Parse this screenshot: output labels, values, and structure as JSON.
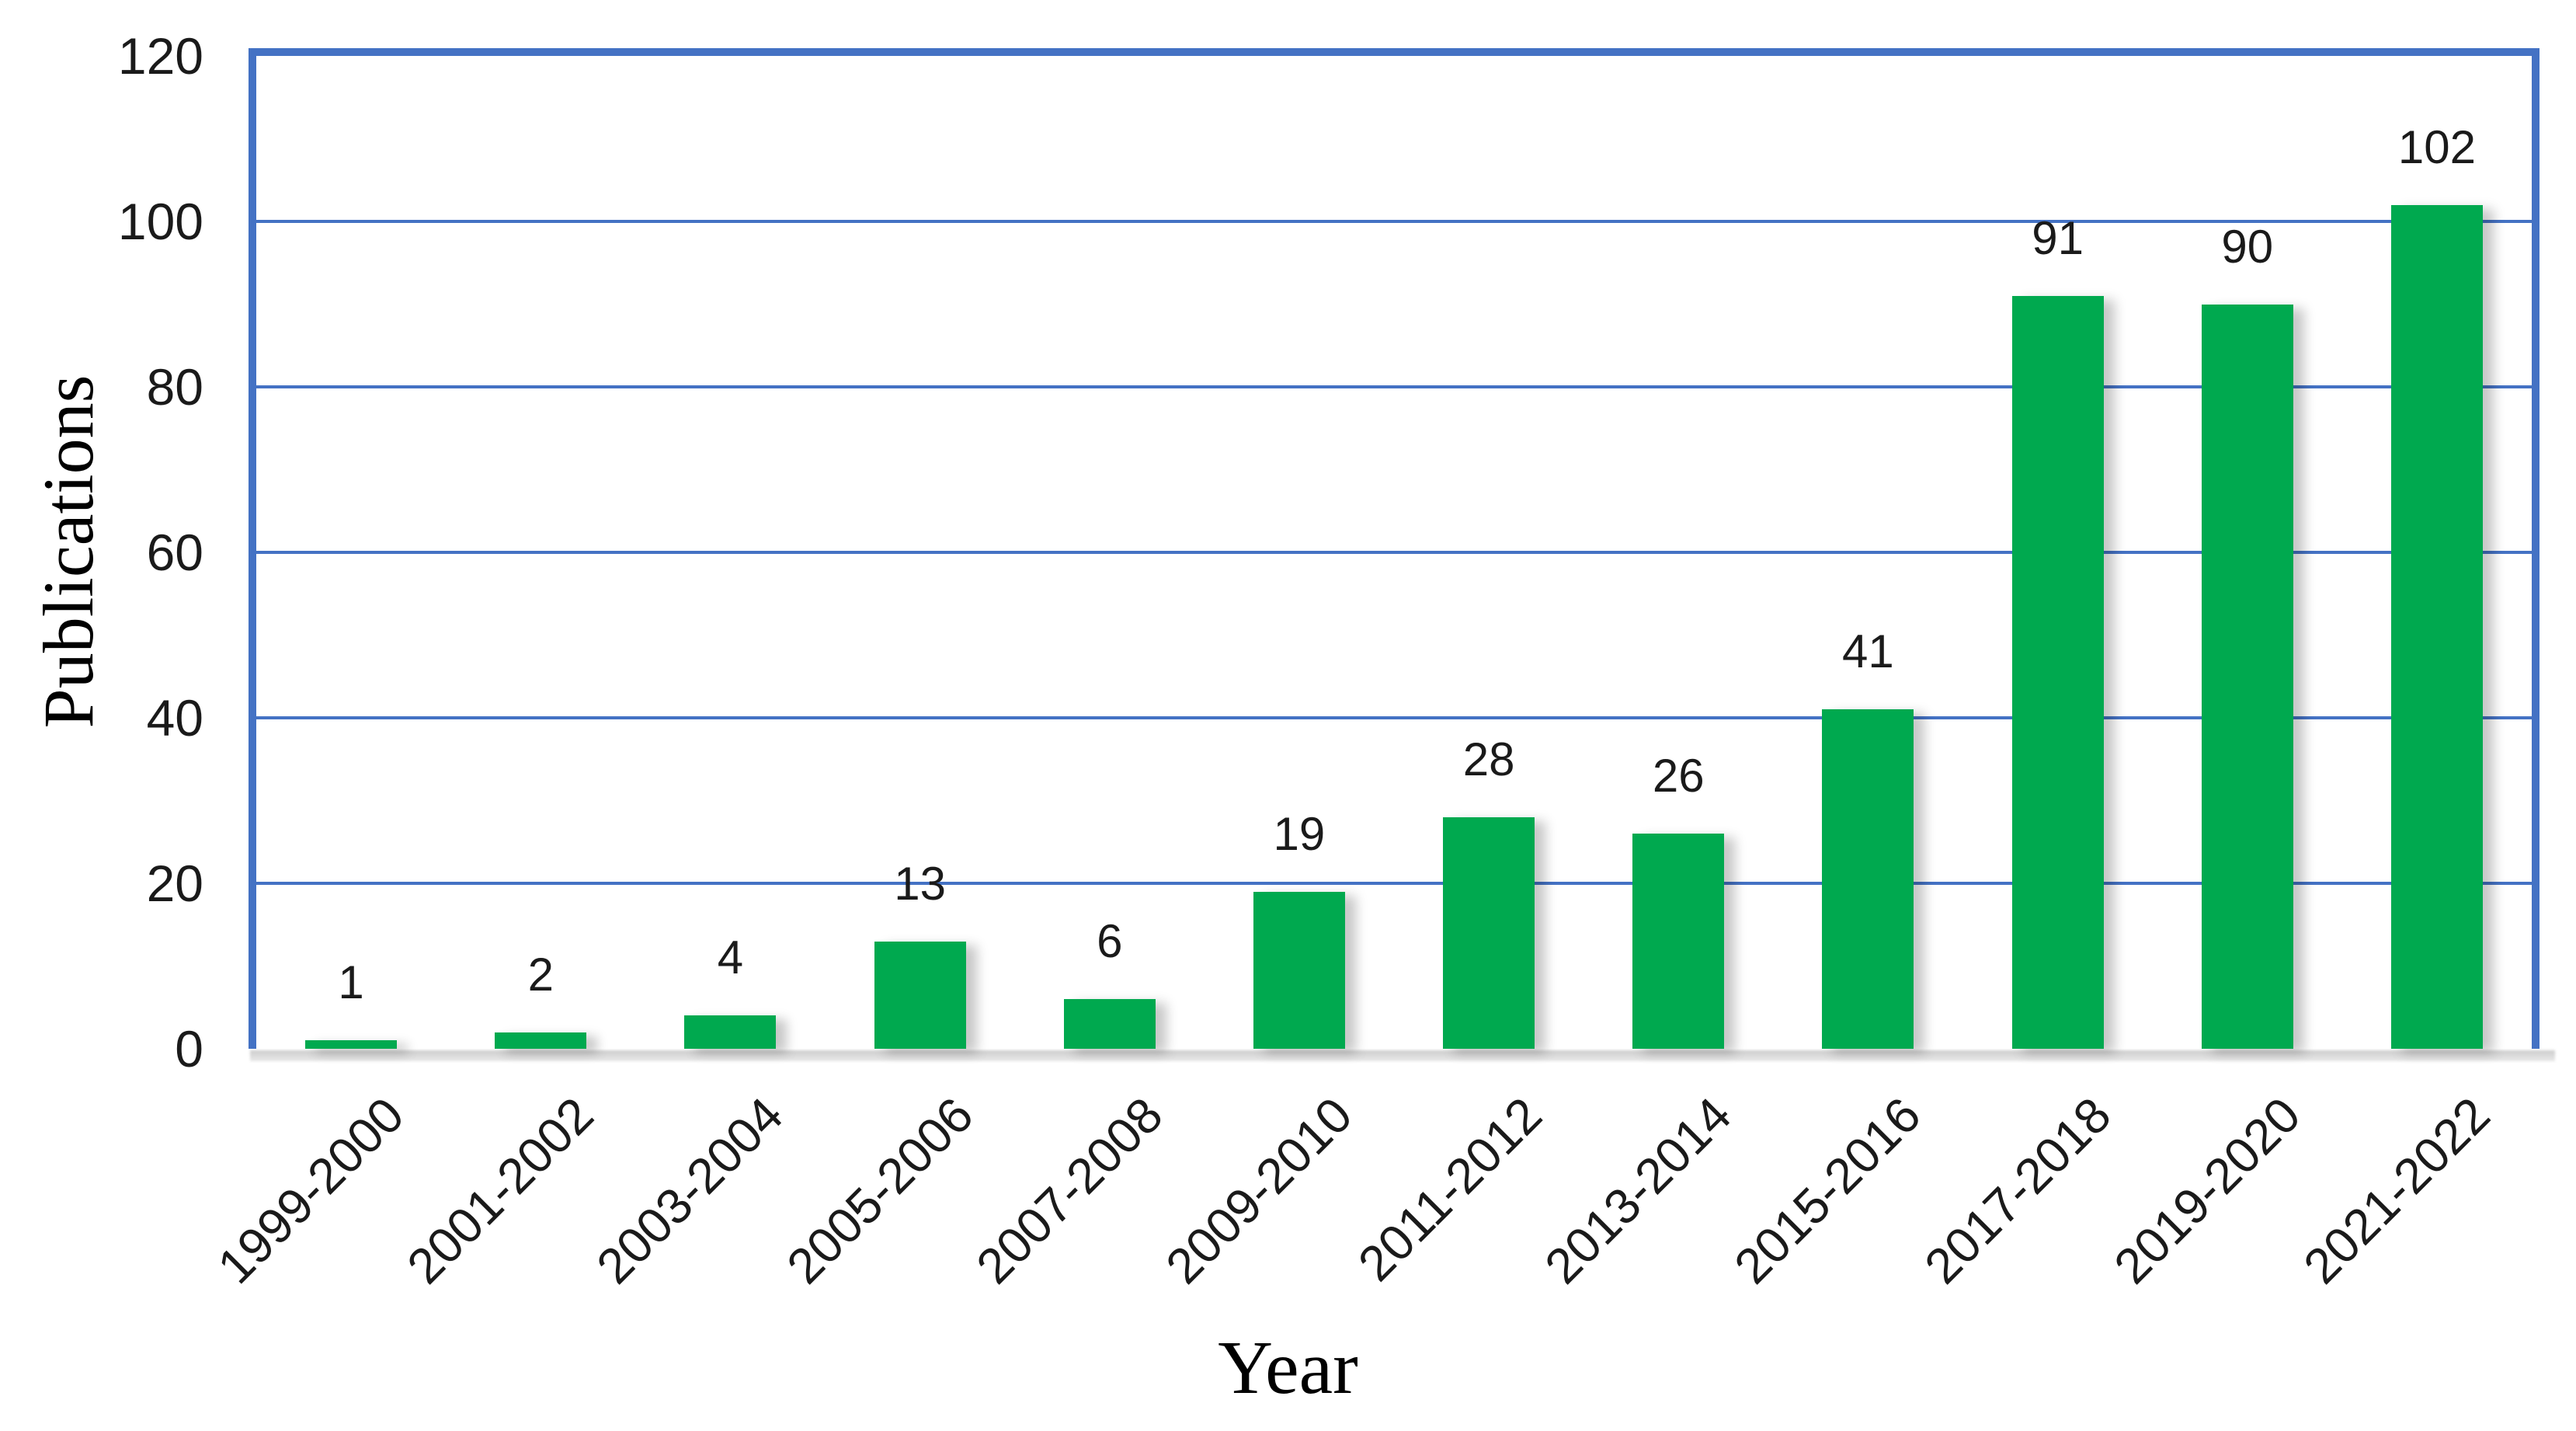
{
  "chart_data": {
    "type": "bar",
    "title": "",
    "categories": [
      "1999-2000",
      "2001-2002",
      "2003-2004",
      "2005-2006",
      "2007-2008",
      "2009-2010",
      "2011-2012",
      "2013-2014",
      "2015-2016",
      "2017-2018",
      "2019-2020",
      "2021-2022"
    ],
    "values": [
      1,
      2,
      4,
      13,
      6,
      19,
      28,
      26,
      41,
      91,
      90,
      102
    ],
    "xlabel": "Year",
    "ylabel": "Publications",
    "yticks": [
      0,
      20,
      40,
      60,
      80,
      100,
      120
    ],
    "ylim": [
      0,
      120
    ],
    "grid": "horizontal gridlines every 20, drawn behind bars",
    "legend_position": "none",
    "bar_color": "#00A94F",
    "axis_color": "#4472C4",
    "text_color": "#1a1a1a"
  }
}
